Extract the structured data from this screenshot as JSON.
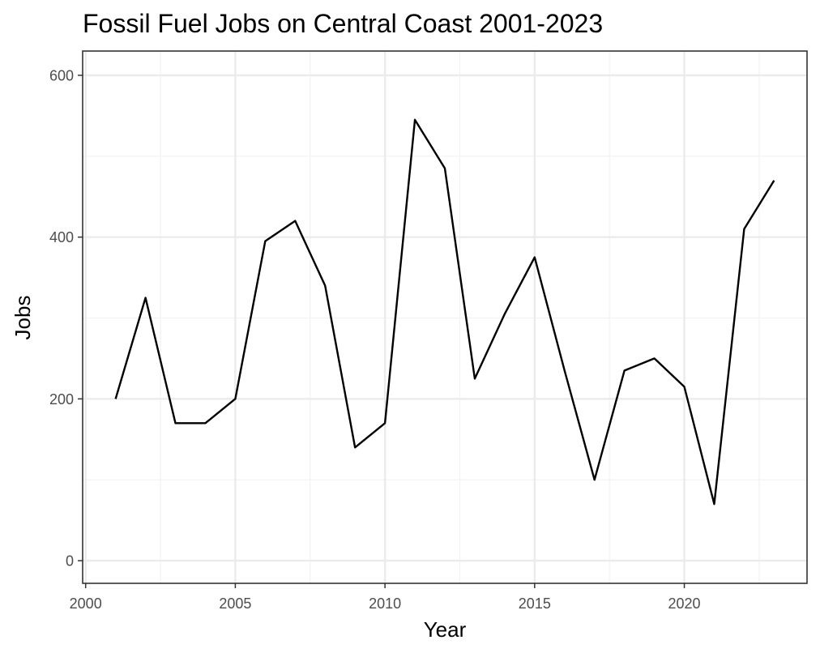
{
  "chart_data": {
    "type": "line",
    "title": "Fossil Fuel Jobs on Central Coast 2001-2023",
    "xlabel": "Year",
    "ylabel": "Jobs",
    "x_ticks": [
      2000,
      2005,
      2010,
      2015,
      2020
    ],
    "y_ticks": [
      0,
      200,
      400,
      600
    ],
    "xlim": [
      1999.9,
      2024.1
    ],
    "ylim": [
      -28,
      630
    ],
    "grid": true,
    "legend": "none",
    "series": [
      {
        "x": [
          2001,
          2002,
          2003,
          2004,
          2005,
          2006,
          2007,
          2008,
          2009,
          2010,
          2011,
          2012,
          2013,
          2014,
          2015,
          2016,
          2017,
          2018,
          2019,
          2020,
          2021,
          2022,
          2023
        ],
        "y": [
          200,
          325,
          170,
          170,
          200,
          395,
          420,
          340,
          140,
          170,
          545,
          485,
          225,
          305,
          375,
          235,
          100,
          235,
          250,
          215,
          70,
          410,
          470
        ]
      }
    ],
    "colors": {
      "line": "#000000",
      "grid_major": "#ebebeb",
      "grid_minor": "#f2f2f2",
      "panel_border": "#333333",
      "tick_text": "#4d4d4d"
    }
  }
}
